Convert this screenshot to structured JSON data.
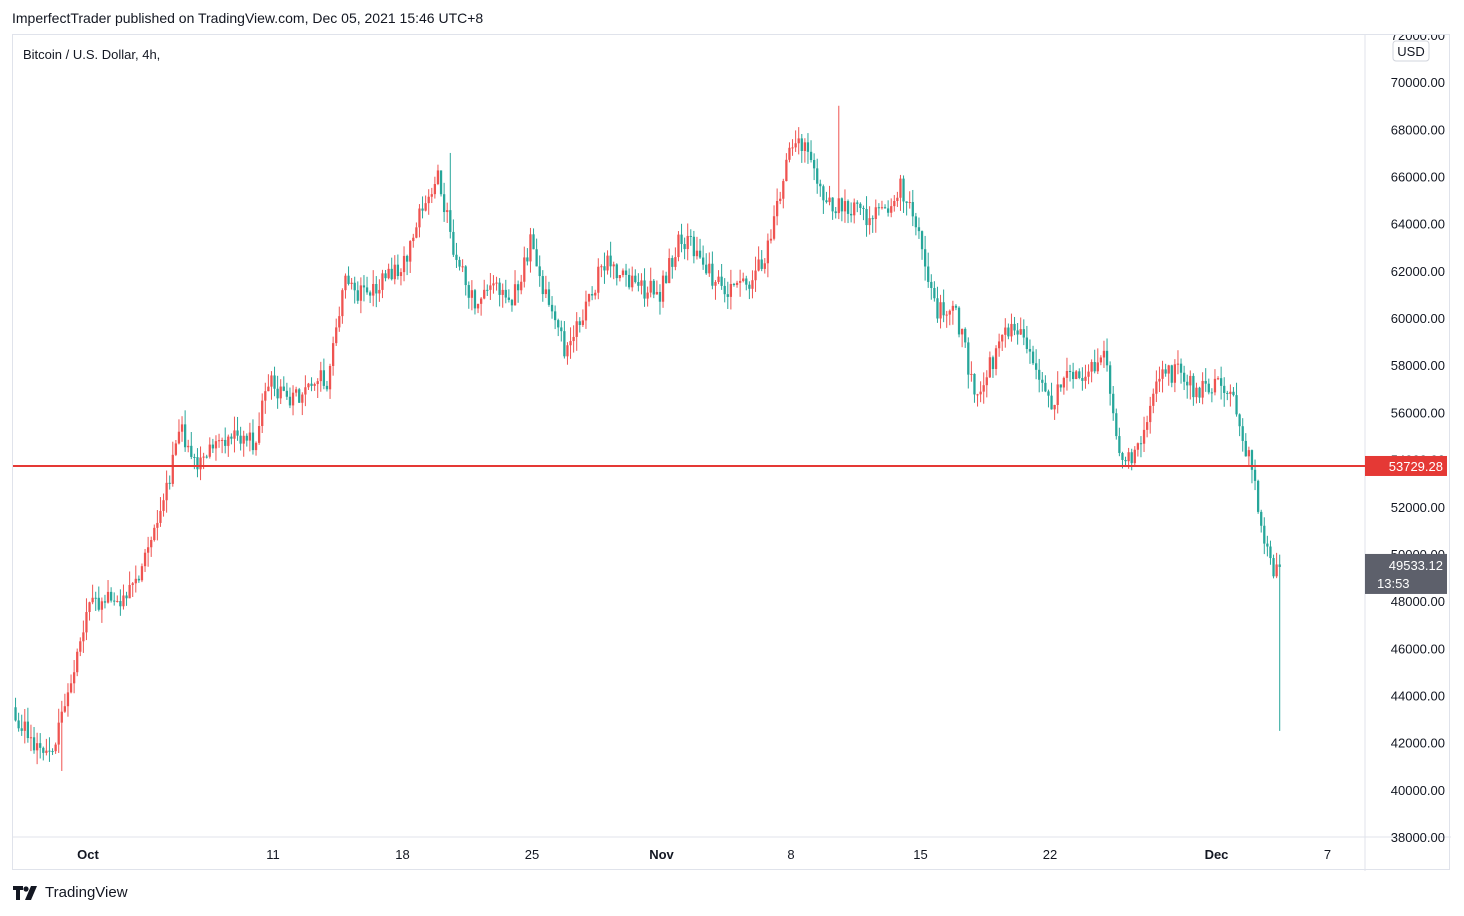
{
  "header": {
    "publish_line": "ImperfectTrader published on TradingView.com, Dec 05, 2021 15:46 UTC+8"
  },
  "footer": {
    "brand": "TradingView"
  },
  "colors": {
    "up": "#ef5350",
    "down": "#26a69a",
    "level_line": "#e53935",
    "last_price_bg": "#5d606b"
  },
  "chart_data": {
    "type": "candlestick",
    "symbol_title": "Bitcoin / U.S. Dollar, 4h,",
    "currency_label": "USD",
    "timeframe": "4h",
    "x_range": [
      "2021-09-27",
      "2021-12-07"
    ],
    "ylim": [
      38000,
      72000
    ],
    "y_ticks": [
      38000,
      40000,
      42000,
      44000,
      46000,
      48000,
      50000,
      52000,
      54000,
      56000,
      58000,
      60000,
      62000,
      64000,
      66000,
      68000,
      70000,
      72000
    ],
    "y_tick_labels": [
      "38000.00",
      "40000.00",
      "42000.00",
      "44000.00",
      "46000.00",
      "48000.00",
      "50000.00",
      "52000.00",
      "54000.00",
      "56000.00",
      "58000.00",
      "60000.00",
      "62000.00",
      "64000.00",
      "66000.00",
      "68000.00",
      "70000.00",
      "72000.00"
    ],
    "x_ticks": [
      {
        "date": "2021-10-01",
        "label": "Oct",
        "bold": true
      },
      {
        "date": "2021-10-11",
        "label": "11",
        "bold": false
      },
      {
        "date": "2021-10-18",
        "label": "18",
        "bold": false
      },
      {
        "date": "2021-10-25",
        "label": "25",
        "bold": false
      },
      {
        "date": "2021-11-01",
        "label": "Nov",
        "bold": true
      },
      {
        "date": "2021-11-08",
        "label": "8",
        "bold": false
      },
      {
        "date": "2021-11-15",
        "label": "15",
        "bold": false
      },
      {
        "date": "2021-11-22",
        "label": "22",
        "bold": false
      },
      {
        "date": "2021-12-01",
        "label": "Dec",
        "bold": true
      },
      {
        "date": "2021-12-07",
        "label": "7",
        "bold": false
      }
    ],
    "horizontal_level": {
      "value": 53729.28,
      "label": "53729.28"
    },
    "last_price": {
      "value": 49533.12,
      "label": "49533.12",
      "countdown": "13:53"
    },
    "approx_closes_daily": [
      [
        "2021-09-27",
        43500
      ],
      [
        "2021-09-28",
        42100
      ],
      [
        "2021-09-29",
        41600
      ],
      [
        "2021-09-30",
        43800
      ],
      [
        "2021-10-01",
        47600
      ],
      [
        "2021-10-02",
        47900
      ],
      [
        "2021-10-03",
        48200
      ],
      [
        "2021-10-04",
        49300
      ],
      [
        "2021-10-05",
        51500
      ],
      [
        "2021-10-06",
        55300
      ],
      [
        "2021-10-07",
        54000
      ],
      [
        "2021-10-08",
        54800
      ],
      [
        "2021-10-09",
        55100
      ],
      [
        "2021-10-10",
        54700
      ],
      [
        "2021-10-11",
        57400
      ],
      [
        "2021-10-12",
        56300
      ],
      [
        "2021-10-13",
        57400
      ],
      [
        "2021-10-14",
        57400
      ],
      [
        "2021-10-15",
        61700
      ],
      [
        "2021-10-16",
        60900
      ],
      [
        "2021-10-17",
        61500
      ],
      [
        "2021-10-18",
        62000
      ],
      [
        "2021-10-19",
        64200
      ],
      [
        "2021-10-20",
        66000
      ],
      [
        "2021-10-21",
        62300
      ],
      [
        "2021-10-22",
        60700
      ],
      [
        "2021-10-23",
        61300
      ],
      [
        "2021-10-24",
        60800
      ],
      [
        "2021-10-25",
        63100
      ],
      [
        "2021-10-26",
        60300
      ],
      [
        "2021-10-27",
        58500
      ],
      [
        "2021-10-28",
        60600
      ],
      [
        "2021-10-29",
        62300
      ],
      [
        "2021-10-30",
        61900
      ],
      [
        "2021-10-31",
        61300
      ],
      [
        "2021-11-01",
        61000
      ],
      [
        "2021-11-02",
        63200
      ],
      [
        "2021-11-03",
        62900
      ],
      [
        "2021-11-04",
        61400
      ],
      [
        "2021-11-05",
        61000
      ],
      [
        "2021-11-06",
        61500
      ],
      [
        "2021-11-07",
        63300
      ],
      [
        "2021-11-08",
        67500
      ],
      [
        "2021-11-09",
        66900
      ],
      [
        "2021-11-10",
        64900
      ],
      [
        "2021-11-11",
        64900
      ],
      [
        "2021-11-12",
        64200
      ],
      [
        "2021-11-13",
        64400
      ],
      [
        "2021-11-14",
        65500
      ],
      [
        "2021-11-15",
        63600
      ],
      [
        "2021-11-16",
        60300
      ],
      [
        "2021-11-17",
        60300
      ],
      [
        "2021-11-18",
        56900
      ],
      [
        "2021-11-19",
        58100
      ],
      [
        "2021-11-20",
        59700
      ],
      [
        "2021-11-21",
        58700
      ],
      [
        "2021-11-22",
        56300
      ],
      [
        "2021-11-23",
        57500
      ],
      [
        "2021-11-24",
        57200
      ],
      [
        "2021-11-25",
        58900
      ],
      [
        "2021-11-26",
        53700
      ],
      [
        "2021-11-27",
        54700
      ],
      [
        "2021-11-28",
        57300
      ],
      [
        "2021-11-29",
        57800
      ],
      [
        "2021-11-30",
        56900
      ],
      [
        "2021-12-01",
        57200
      ],
      [
        "2021-12-02",
        56500
      ],
      [
        "2021-12-03",
        53600
      ],
      [
        "2021-12-04",
        49400
      ],
      [
        "2021-12-05",
        49533
      ]
    ],
    "notable_extremes": [
      {
        "date": "2021-09-29",
        "low": 40800
      },
      {
        "date": "2021-10-20",
        "high": 67000
      },
      {
        "date": "2021-11-10",
        "high": 69000
      },
      {
        "date": "2021-12-04",
        "low": 42500
      }
    ]
  }
}
